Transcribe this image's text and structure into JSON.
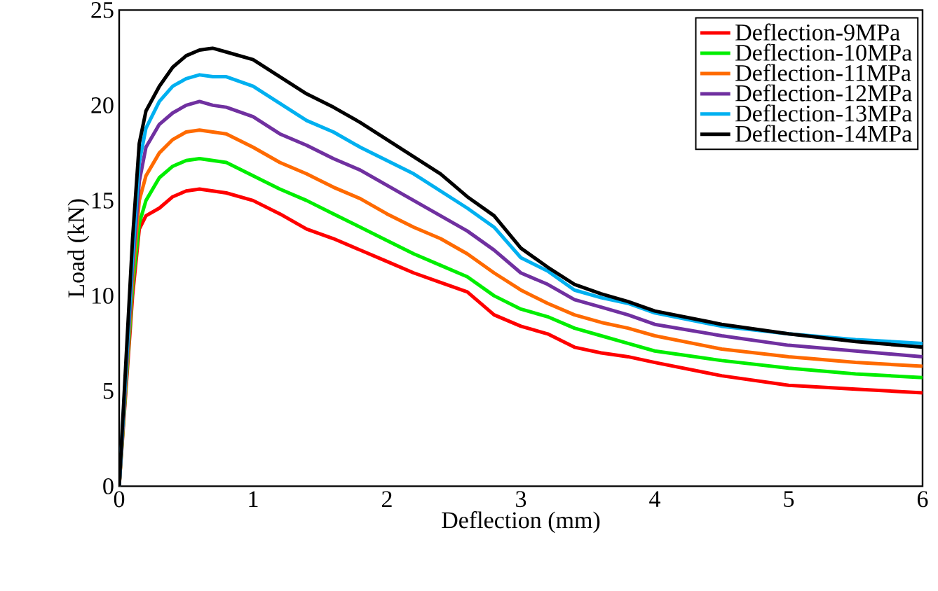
{
  "chart_data": {
    "type": "line",
    "xlabel": "Deflection (mm)",
    "ylabel": "Load (kN)",
    "xlim": [
      0,
      6
    ],
    "ylim": [
      0,
      25
    ],
    "xticks": [
      0,
      1,
      2,
      3,
      4,
      5,
      6
    ],
    "yticks": [
      0,
      5,
      10,
      15,
      20,
      25
    ],
    "grid": false,
    "legend": "top right",
    "marker": "none",
    "line_style": "solid",
    "x": [
      0,
      0.1,
      0.15,
      0.2,
      0.3,
      0.4,
      0.5,
      0.6,
      0.7,
      0.8,
      1.0,
      1.2,
      1.4,
      1.6,
      1.8,
      2.0,
      2.2,
      2.4,
      2.6,
      2.8,
      3.0,
      3.2,
      3.4,
      3.6,
      3.8,
      4.0,
      4.5,
      5,
      5.5,
      6
    ],
    "series": [
      {
        "name": "Deflection-9MPa",
        "color": "#ff0000",
        "values": [
          0,
          10,
          13.5,
          14.2,
          14.6,
          15.2,
          15.5,
          15.6,
          15.5,
          15.4,
          15.0,
          14.3,
          13.5,
          13.0,
          12.4,
          11.8,
          11.2,
          10.7,
          10.2,
          9.0,
          8.4,
          8.0,
          7.3,
          7.0,
          6.8,
          6.5,
          5.8,
          5.3,
          5.1,
          4.9
        ]
      },
      {
        "name": "Deflection-10MPa",
        "color": "#00ee00",
        "values": [
          0,
          10.5,
          13.8,
          15,
          16.2,
          16.8,
          17.1,
          17.2,
          17.1,
          17.0,
          16.3,
          15.6,
          15.0,
          14.3,
          13.6,
          12.9,
          12.2,
          11.6,
          11.0,
          10.0,
          9.3,
          8.9,
          8.3,
          7.9,
          7.5,
          7.1,
          6.6,
          6.2,
          5.9,
          5.7
        ]
      },
      {
        "name": "Deflection-11MPa",
        "color": "#ff6a00",
        "values": [
          0,
          11,
          15,
          16.3,
          17.5,
          18.2,
          18.6,
          18.7,
          18.6,
          18.5,
          17.8,
          17.0,
          16.4,
          15.7,
          15.1,
          14.3,
          13.6,
          13.0,
          12.2,
          11.2,
          10.3,
          9.6,
          9.0,
          8.6,
          8.3,
          7.9,
          7.2,
          6.8,
          6.5,
          6.3
        ]
      },
      {
        "name": "Deflection-12MPa",
        "color": "#7030a0",
        "values": [
          0,
          11.5,
          16,
          17.8,
          19.0,
          19.6,
          20.0,
          20.2,
          20.0,
          19.9,
          19.4,
          18.5,
          17.9,
          17.2,
          16.6,
          15.8,
          15.0,
          14.2,
          13.4,
          12.4,
          11.2,
          10.6,
          9.8,
          9.4,
          9.0,
          8.5,
          7.9,
          7.4,
          7.1,
          6.8
        ]
      },
      {
        "name": "Deflection-13MPa",
        "color": "#00b0f0",
        "values": [
          0,
          12,
          17,
          18.8,
          20.2,
          21.0,
          21.4,
          21.6,
          21.5,
          21.5,
          21.0,
          20.1,
          19.2,
          18.6,
          17.8,
          17.1,
          16.4,
          15.5,
          14.6,
          13.6,
          12.0,
          11.3,
          10.3,
          9.9,
          9.6,
          9.1,
          8.4,
          8.0,
          7.7,
          7.5
        ]
      },
      {
        "name": "Deflection-14MPa",
        "color": "#000000",
        "values": [
          0,
          13,
          18,
          19.7,
          21,
          22.0,
          22.6,
          22.9,
          23.0,
          22.8,
          22.4,
          21.5,
          20.6,
          19.9,
          19.1,
          18.2,
          17.3,
          16.4,
          15.2,
          14.2,
          12.5,
          11.5,
          10.6,
          10.1,
          9.7,
          9.2,
          8.5,
          8.0,
          7.6,
          7.3
        ]
      }
    ]
  }
}
